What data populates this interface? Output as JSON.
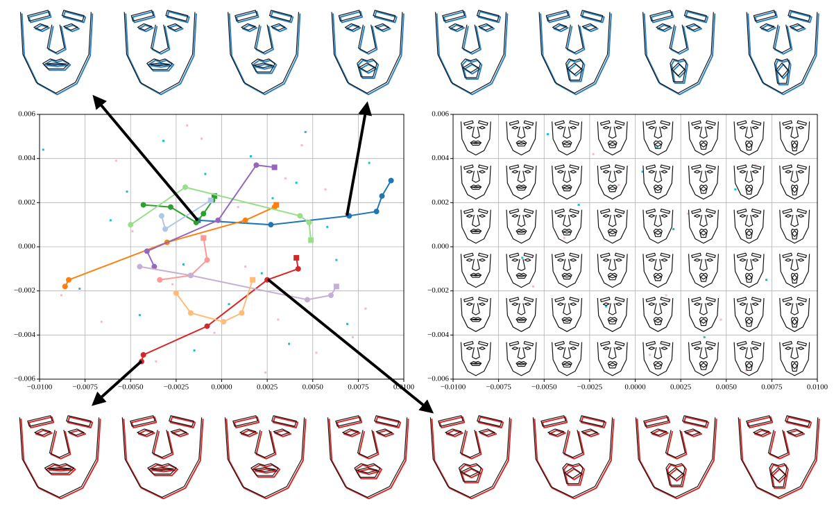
{
  "chart_data": [
    {
      "type": "line",
      "xlim": [
        -0.01,
        0.01
      ],
      "ylim": [
        -0.006,
        0.006
      ],
      "xticks": [
        {
          "value": -0.01,
          "label": "−0.0100"
        },
        {
          "value": -0.0075,
          "label": "−0.0075"
        },
        {
          "value": -0.005,
          "label": "−0.0050"
        },
        {
          "value": -0.0025,
          "label": "−0.0025"
        },
        {
          "value": 0,
          "label": "0.0000"
        },
        0.0025,
        {
          "value": 0.005,
          "label": "0.0050"
        },
        0.0075,
        {
          "value": 0.01,
          "label": "0.0100"
        }
      ],
      "yticks": [
        {
          "value": -0.006,
          "label": "−0.006"
        },
        {
          "value": -0.004,
          "label": "−0.004"
        },
        {
          "value": -0.002,
          "label": "−0.002"
        },
        {
          "value": 0,
          "label": "0.000"
        },
        0.002,
        0.004,
        0.006
      ],
      "grid": true,
      "scatter": [
        {
          "color": "#17becf",
          "x": [
            -0.0098,
            -0.0078,
            -0.0061,
            -0.0045,
            -0.0032,
            -0.0021,
            -0.0009,
            0.0004,
            0.0016,
            0.0028,
            0.0037,
            0.0046,
            0.0058,
            0.0069,
            0.0081,
            -0.0052,
            -0.0015,
            0.0022,
            0.0041,
            0.0063
          ],
          "y": [
            0.0044,
            -0.0019,
            0.0012,
            -0.0031,
            0.0048,
            -0.0008,
            0.0033,
            -0.0026,
            0.0041,
            0.0022,
            -0.0044,
            0.0052,
            0.0009,
            -0.0035,
            0.0038,
            0.0025,
            -0.0047,
            -0.0012,
            0.0029,
            -0.0006
          ]
        },
        {
          "color": "#f7b6d2",
          "x": [
            -0.0088,
            -0.0066,
            -0.0049,
            -0.0036,
            -0.0019,
            -0.0004,
            0.0009,
            0.0024,
            0.0035,
            0.0052,
            0.0068,
            0.0079,
            -0.0058,
            -0.0027,
            0.0013,
            0.0044,
            0.0072,
            -0.0011,
            0.0031,
            0.0057
          ],
          "y": [
            -0.0022,
            -0.0034,
            0.0007,
            -0.0052,
            0.0055,
            -0.0039,
            0.0018,
            -0.0057,
            0.0031,
            -0.0048,
            0.0015,
            -0.0028,
            0.0039,
            -0.0017,
            -0.0009,
            0.0046,
            -0.0041,
            0.0049,
            -0.0033,
            0.0026
          ]
        }
      ],
      "series": [
        {
          "color": "#1f77b4",
          "x": [
            0.0093,
            0.0088,
            0.0085,
            0.007,
            0.0027,
            -0.0013
          ],
          "y": [
            0.003,
            0.0023,
            0.0016,
            0.0014,
            0.001,
            0.0012
          ]
        },
        {
          "color": "#ff7f0e",
          "x": [
            -0.0086,
            -0.0084,
            -0.003,
            0.0013,
            0.0029,
            0.003
          ],
          "y": [
            -0.0018,
            -0.0015,
            0.0002,
            0.0012,
            0.0018,
            0.0019
          ]
        },
        {
          "color": "#2ca02c",
          "x": [
            -0.0043,
            -0.0028,
            -0.0014,
            -0.001,
            -0.0005,
            -0.0004
          ],
          "y": [
            0.0019,
            0.0018,
            0.0011,
            0.0015,
            0.0021,
            0.0023
          ]
        },
        {
          "color": "#98df8a",
          "x": [
            -0.005,
            -0.002,
            0.0043,
            0.0048,
            0.0049
          ],
          "y": [
            0.001,
            0.0027,
            0.0014,
            0.0011,
            0.0003
          ]
        },
        {
          "color": "#d62728",
          "x": [
            -0.0044,
            -0.0043,
            -0.0008,
            0.0025,
            0.0042,
            0.0041
          ],
          "y": [
            -0.0052,
            -0.0049,
            -0.0036,
            -0.0015,
            -0.001,
            -0.0005
          ]
        },
        {
          "color": "#ff9896",
          "x": [
            -0.0034,
            -0.0017,
            -0.0008,
            -0.001
          ],
          "y": [
            -0.0015,
            -0.0013,
            -0.0006,
            0.0004
          ]
        },
        {
          "color": "#9467bd",
          "x": [
            -0.0037,
            -0.0041,
            -0.0002,
            0.0019,
            0.0029
          ],
          "y": [
            -0.0009,
            -0.0002,
            0.0012,
            0.0037,
            0.0036
          ]
        },
        {
          "color": "#c5b0d5",
          "x": [
            -0.0045,
            -0.0017,
            0.0047,
            0.006,
            0.0063
          ],
          "y": [
            -0.0009,
            -0.0013,
            -0.0024,
            -0.0022,
            -0.0018
          ]
        },
        {
          "color": "#aec7e8",
          "x": [
            -0.0033,
            -0.0031,
            -0.0006
          ],
          "y": [
            0.0014,
            0.0008,
            0.0021
          ]
        },
        {
          "color": "#ffbb78",
          "x": [
            -0.0025,
            -0.0017,
            0.0001,
            0.0011,
            0.0017
          ],
          "y": [
            -0.0021,
            -0.003,
            -0.0034,
            -0.003,
            -0.0015
          ]
        }
      ]
    },
    {
      "type": "scatter",
      "xlim": [
        -0.01,
        0.01
      ],
      "ylim": [
        -0.006,
        0.006
      ],
      "xticks": [
        {
          "value": -0.01,
          "label": "−0.0100"
        },
        {
          "value": -0.0075,
          "label": "−0.0075"
        },
        {
          "value": -0.005,
          "label": "−0.0050"
        },
        {
          "value": -0.0025,
          "label": "−0.0025"
        },
        {
          "value": 0,
          "label": "0.0000"
        },
        0.0025,
        {
          "value": 0.005,
          "label": "0.0050"
        },
        0.0075,
        {
          "value": 0.01,
          "label": "0.0100"
        }
      ],
      "yticks": [
        {
          "value": -0.006,
          "label": "−0.006"
        },
        {
          "value": -0.004,
          "label": "−0.004"
        },
        {
          "value": -0.002,
          "label": "−0.002"
        },
        {
          "value": 0,
          "label": "0.000"
        },
        0.002,
        0.004,
        0.006
      ],
      "grid": true,
      "scatter": [
        {
          "color": "#17becf",
          "x": [
            -0.0048,
            -0.0031,
            -0.0016,
            0.0004,
            0.0021,
            0.0038,
            0.0055,
            0.0072,
            -0.0062,
            0.0012
          ],
          "y": [
            0.0051,
            0.0019,
            -0.0027,
            0.0034,
            0.0008,
            -0.0041,
            0.0026,
            -0.0015,
            -0.0005,
            0.0045
          ]
        },
        {
          "color": "#f7b6d2",
          "x": [
            -0.0056,
            -0.0023,
            0.0008,
            0.0029,
            0.0047,
            0.0066,
            -0.0039,
            0.0017,
            0.0061,
            -0.0009
          ],
          "y": [
            -0.0018,
            0.0042,
            -0.0049,
            0.0015,
            -0.0033,
            0.0037,
            0.0004,
            -0.0022,
            -0.0056,
            0.0028
          ]
        }
      ]
    }
  ]
}
